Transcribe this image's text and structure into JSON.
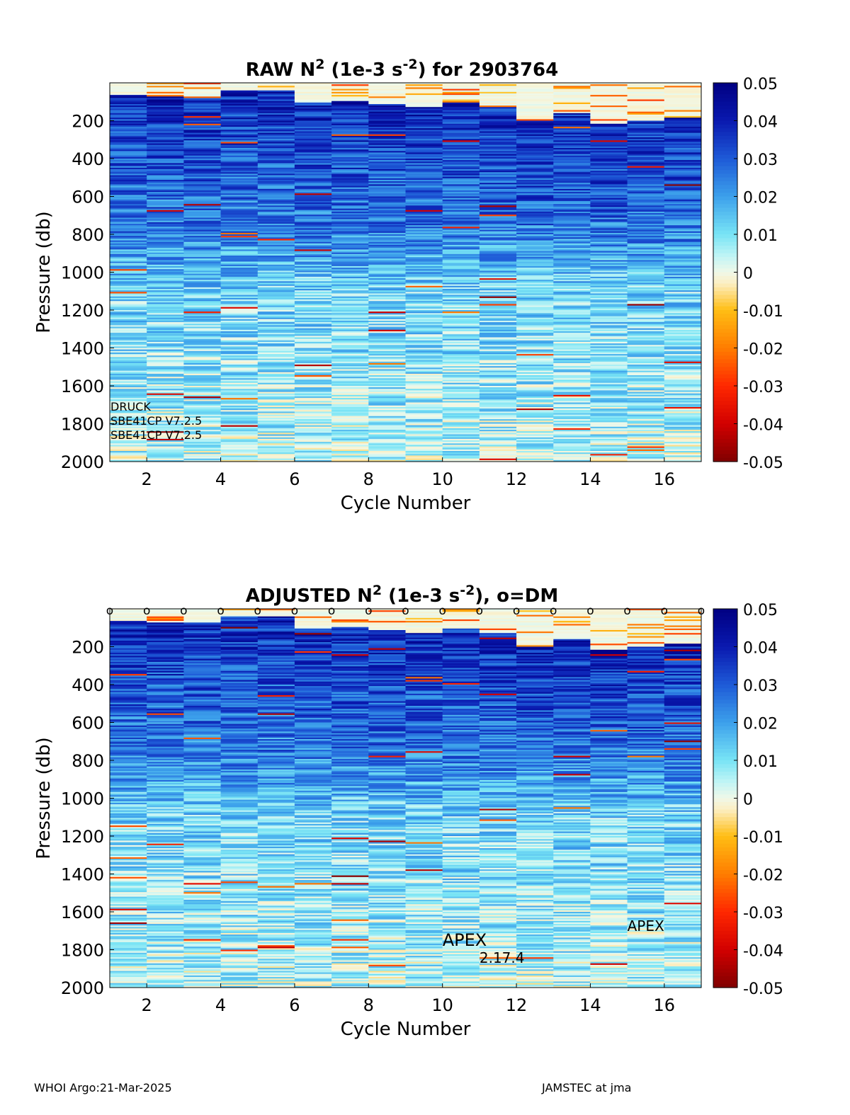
{
  "chart_data": [
    {
      "type": "heatmap",
      "title_main": "RAW N",
      "title_sup1": "2",
      "title_mid": " (1e-3 s",
      "title_sup2": "-2",
      "title_end": ") for 2903764",
      "xlabel": "Cycle Number",
      "ylabel": "Pressure (db)",
      "xlim": [
        1,
        17
      ],
      "ylim": [
        2000,
        0
      ],
      "x_ticks": [
        "2",
        "4",
        "6",
        "8",
        "10",
        "12",
        "14",
        "16"
      ],
      "x_tick_values": [
        2,
        4,
        6,
        8,
        10,
        12,
        14,
        16
      ],
      "y_ticks": [
        "200",
        "400",
        "600",
        "800",
        "1000",
        "1200",
        "1400",
        "1600",
        "1800",
        "2000"
      ],
      "y_tick_values": [
        200,
        400,
        600,
        800,
        1000,
        1200,
        1400,
        1600,
        1800,
        2000
      ],
      "colorbar": {
        "min": -0.05,
        "max": 0.05,
        "ticks": [
          "0.05",
          "0.04",
          "0.03",
          "0.02",
          "0.01",
          "0",
          "-0.01",
          "-0.02",
          "-0.03",
          "-0.04",
          "-0.05"
        ],
        "tick_values": [
          0.05,
          0.04,
          0.03,
          0.02,
          0.01,
          0,
          -0.01,
          -0.02,
          -0.03,
          -0.04,
          -0.05
        ]
      },
      "cycles": [
        1,
        2,
        3,
        4,
        5,
        6,
        7,
        8,
        9,
        10,
        11,
        12,
        13,
        14,
        15,
        16
      ],
      "mixed_layer_depth_db": [
        60,
        65,
        70,
        40,
        40,
        100,
        90,
        110,
        125,
        100,
        125,
        200,
        160,
        215,
        200,
        180
      ],
      "annotations": [
        {
          "text": "DRUCK",
          "x": 1.02,
          "y": 1730,
          "size": "small"
        },
        {
          "text": "SBE41CP V7.2.5",
          "x": 1.02,
          "y": 1805,
          "size": "small"
        },
        {
          "text": "SBE41CP V7.2.5",
          "x": 1.02,
          "y": 1880,
          "size": "small"
        }
      ],
      "dm_markers": null
    },
    {
      "type": "heatmap",
      "title_main": "ADJUSTED N",
      "title_sup1": "2",
      "title_mid": " (1e-3 s",
      "title_sup2": "-2",
      "title_end": "), o=DM",
      "xlabel": "Cycle Number",
      "ylabel": "Pressure (db)",
      "xlim": [
        1,
        17
      ],
      "ylim": [
        2000,
        0
      ],
      "x_ticks": [
        "2",
        "4",
        "6",
        "8",
        "10",
        "12",
        "14",
        "16"
      ],
      "x_tick_values": [
        2,
        4,
        6,
        8,
        10,
        12,
        14,
        16
      ],
      "y_ticks": [
        "200",
        "400",
        "600",
        "800",
        "1000",
        "1200",
        "1400",
        "1600",
        "1800",
        "2000"
      ],
      "y_tick_values": [
        200,
        400,
        600,
        800,
        1000,
        1200,
        1400,
        1600,
        1800,
        2000
      ],
      "colorbar": {
        "min": -0.05,
        "max": 0.05,
        "ticks": [
          "0.05",
          "0.04",
          "0.03",
          "0.02",
          "0.01",
          "0",
          "-0.01",
          "-0.02",
          "-0.03",
          "-0.04",
          "-0.05"
        ],
        "tick_values": [
          0.05,
          0.04,
          0.03,
          0.02,
          0.01,
          0,
          -0.01,
          -0.02,
          -0.03,
          -0.04,
          -0.05
        ]
      },
      "cycles": [
        1,
        2,
        3,
        4,
        5,
        6,
        7,
        8,
        9,
        10,
        11,
        12,
        13,
        14,
        15,
        16
      ],
      "mixed_layer_depth_db": [
        60,
        65,
        70,
        40,
        40,
        100,
        90,
        110,
        125,
        100,
        125,
        200,
        160,
        215,
        200,
        180
      ],
      "annotations": [
        {
          "text": "APEX",
          "x": 10.0,
          "y": 1780,
          "size": "large"
        },
        {
          "text": "2.17.4",
          "x": 11.0,
          "y": 1870,
          "size": "medium"
        },
        {
          "text": "APEX",
          "x": 15.0,
          "y": 1700,
          "size": "medium"
        }
      ],
      "dm_markers": {
        "symbol": "o",
        "x": [
          1,
          2,
          3,
          4,
          5,
          6,
          7,
          8,
          9,
          10,
          11,
          12,
          13,
          14,
          15,
          16,
          17
        ]
      }
    }
  ],
  "footer": {
    "left": "WHOI Argo:21-Mar-2025",
    "right": "JAMSTEC at jma"
  }
}
